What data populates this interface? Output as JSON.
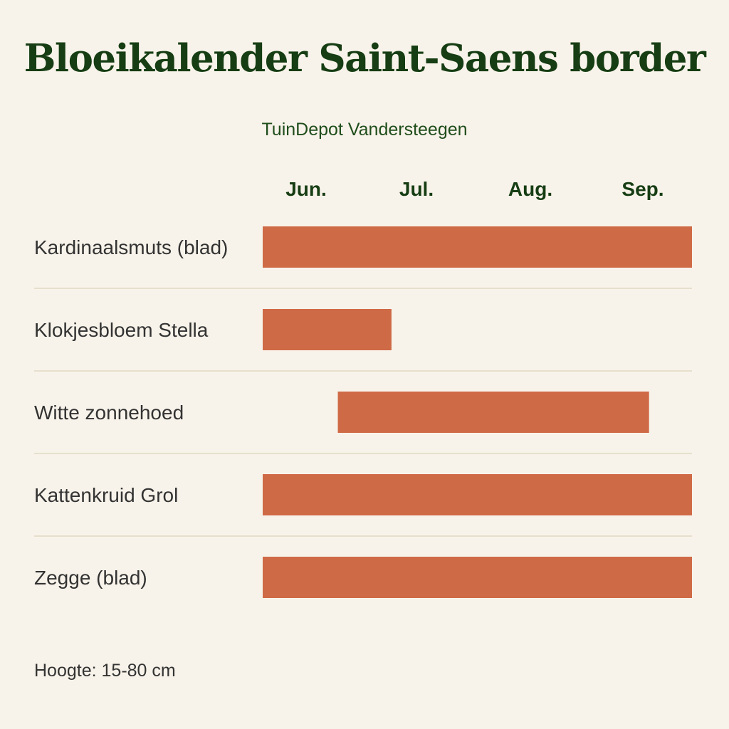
{
  "title": "Bloeikalender Saint-Saens border",
  "subtitle": "TuinDepot Vandersteegen",
  "footer": "Hoogte: 15-80 cm",
  "colors": {
    "background": "#f8f3ea",
    "bar": "#cf6a47",
    "divider": "#e6dfcd",
    "title": "#163d13"
  },
  "chart_data": {
    "type": "bar",
    "orientation": "horizontal-range",
    "months": [
      "Jun.",
      "Jul.",
      "Aug.",
      "Sep."
    ],
    "xlim": [
      0,
      4
    ],
    "grid": false,
    "rows": [
      {
        "label": "Kardinaalsmuts (blad)",
        "start": 0,
        "end": 4
      },
      {
        "label": "Klokjesbloem Stella",
        "start": 0,
        "end": 1.2
      },
      {
        "label": "Witte zonnehoed",
        "start": 0.7,
        "end": 3.6
      },
      {
        "label": "Kattenkruid Grol",
        "start": 0,
        "end": 4
      },
      {
        "label": "Zegge (blad)",
        "start": 0,
        "end": 4
      }
    ]
  }
}
